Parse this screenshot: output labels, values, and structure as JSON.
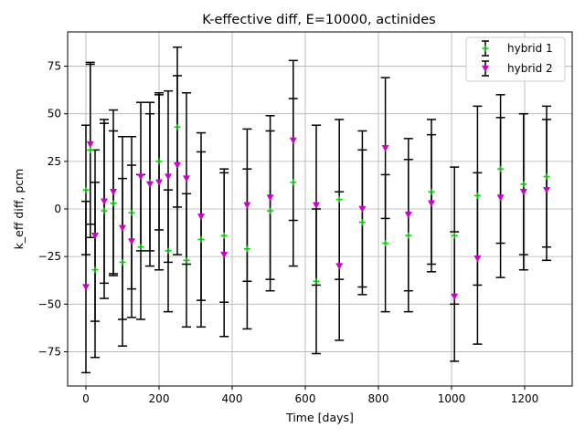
{
  "chart_data": {
    "type": "scatter",
    "title": "K-effective diff, E=10000, actinides",
    "xlabel": "Time [days]",
    "ylabel": "k_eff diff, pcm",
    "xlim": [
      -50,
      1330
    ],
    "ylim": [
      -93,
      93
    ],
    "grid": true,
    "legend_position": "top-right",
    "x_ticks": [
      0,
      200,
      400,
      600,
      800,
      1000,
      1200
    ],
    "y_ticks": [
      -75,
      -50,
      -25,
      0,
      25,
      50,
      75
    ],
    "x_tick_labels": [
      "0",
      "200",
      "400",
      "600",
      "800",
      "1000",
      "1200"
    ],
    "y_tick_labels": [
      "−75",
      "−50",
      "−25",
      "0",
      "25",
      "50",
      "75"
    ],
    "x": [
      0,
      12,
      25,
      50,
      75,
      100,
      125,
      150,
      175,
      200,
      225,
      250,
      275,
      315,
      378,
      441,
      504,
      567,
      630,
      693,
      756,
      819,
      882,
      945,
      1008,
      1071,
      1134,
      1197,
      1260
    ],
    "series": [
      {
        "name": "hybrid 1",
        "color": "#00cc00",
        "marker": "+",
        "errorbar_color": "#000000",
        "values": [
          10,
          31,
          -32,
          -1,
          3,
          -28,
          -2,
          -20,
          14,
          25,
          -22,
          43,
          -27,
          -16,
          -14,
          -21,
          -1,
          14,
          -38,
          5,
          -7,
          -18,
          -14,
          9,
          -14,
          7,
          21,
          13,
          17
        ],
        "errors": [
          34,
          46,
          46,
          46,
          38,
          44,
          40,
          38,
          36,
          36,
          32,
          42,
          35,
          46,
          35,
          42,
          42,
          44,
          38,
          42,
          38,
          36,
          40,
          38,
          36,
          47,
          39,
          37,
          37
        ]
      },
      {
        "name": "hybrid 2",
        "color": "#cc00cc",
        "marker": "v",
        "errorbar_color": "#000000",
        "values": [
          -41,
          34,
          -14,
          4,
          9,
          -10,
          -17,
          17,
          13,
          14,
          17,
          23,
          16,
          -4,
          -24,
          2,
          6,
          36,
          2,
          -30,
          0,
          32,
          -3,
          3,
          -46,
          -26,
          6,
          9,
          10
        ],
        "errors": [
          45,
          42,
          45,
          43,
          43,
          48,
          40,
          39,
          43,
          46,
          45,
          47,
          45,
          44,
          43,
          40,
          43,
          42,
          42,
          39,
          41,
          37,
          40,
          36,
          34,
          45,
          42,
          41,
          37
        ]
      }
    ]
  }
}
